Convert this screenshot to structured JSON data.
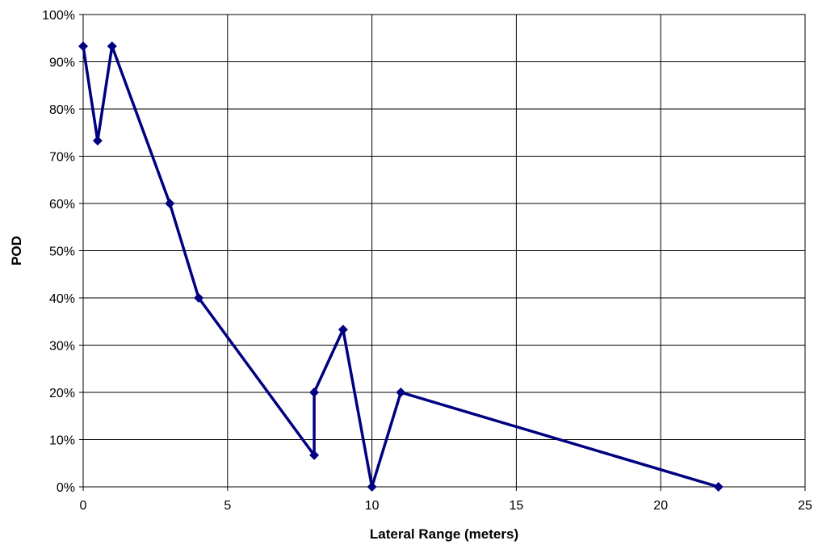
{
  "chart_data": {
    "type": "line",
    "title": "",
    "xlabel": "Lateral Range (meters)",
    "ylabel": "POD",
    "xlim": [
      0,
      25
    ],
    "ylim": [
      0,
      1
    ],
    "x_ticks": [
      0,
      5,
      10,
      15,
      20,
      25
    ],
    "x_tick_labels": [
      "0",
      "5",
      "10",
      "15",
      "20",
      "25"
    ],
    "y_ticks": [
      0,
      0.1,
      0.2,
      0.3,
      0.4,
      0.5,
      0.6,
      0.7,
      0.8,
      0.9,
      1.0
    ],
    "y_tick_labels": [
      "0%",
      "10%",
      "20%",
      "30%",
      "40%",
      "50%",
      "60%",
      "70%",
      "80%",
      "90%",
      "100%"
    ],
    "grid": true,
    "legend": "none",
    "series": [
      {
        "color": "#000080",
        "marker": "diamond",
        "points": [
          {
            "x": 0,
            "y": 0.933
          },
          {
            "x": 0.5,
            "y": 0.733
          },
          {
            "x": 1,
            "y": 0.933
          },
          {
            "x": 3,
            "y": 0.6
          },
          {
            "x": 4,
            "y": 0.4
          },
          {
            "x": 8,
            "y": 0.067
          },
          {
            "x": 8,
            "y": 0.2
          },
          {
            "x": 9,
            "y": 0.333
          },
          {
            "x": 10,
            "y": 0.0
          },
          {
            "x": 11,
            "y": 0.2
          },
          {
            "x": 22,
            "y": 0.0
          }
        ]
      }
    ]
  }
}
